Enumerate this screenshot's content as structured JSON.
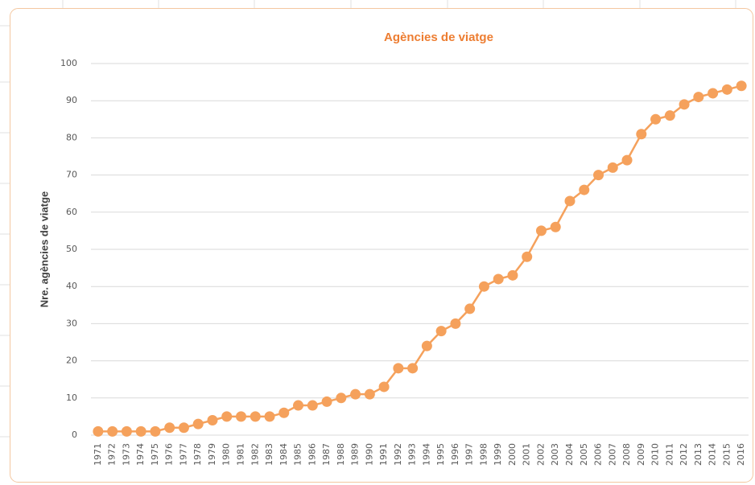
{
  "chart_data": {
    "type": "line",
    "title": "Agències de viatge",
    "y_label": "Nre. agències de viatge",
    "categories": [
      "1971",
      "1972",
      "1973",
      "1974",
      "1975",
      "1976",
      "1977",
      "1978",
      "1979",
      "1980",
      "1981",
      "1982",
      "1983",
      "1984",
      "1985",
      "1986",
      "1987",
      "1988",
      "1989",
      "1990",
      "1991",
      "1992",
      "1993",
      "1994",
      "1995",
      "1996",
      "1997",
      "1998",
      "1999",
      "2000",
      "2001",
      "2002",
      "2003",
      "2004",
      "2005",
      "2006",
      "2007",
      "2008",
      "2009",
      "2010",
      "2011",
      "2012",
      "2013",
      "2014",
      "2015",
      "2016"
    ],
    "series": [
      {
        "name": "Agències de viatge",
        "color": "#f5a15c",
        "values": [
          1,
          1,
          1,
          1,
          1,
          2,
          2,
          3,
          4,
          5,
          5,
          5,
          5,
          6,
          8,
          8,
          9,
          10,
          11,
          11,
          13,
          18,
          18,
          24,
          28,
          30,
          34,
          40,
          42,
          43,
          48,
          55,
          56,
          63,
          66,
          70,
          72,
          74,
          81,
          85,
          86,
          89,
          91,
          92,
          93,
          94
        ]
      }
    ],
    "ylim": [
      0,
      100
    ],
    "yticks": [
      0,
      10,
      20,
      30,
      40,
      50,
      60,
      70,
      80,
      90,
      100
    ],
    "grid": true
  }
}
